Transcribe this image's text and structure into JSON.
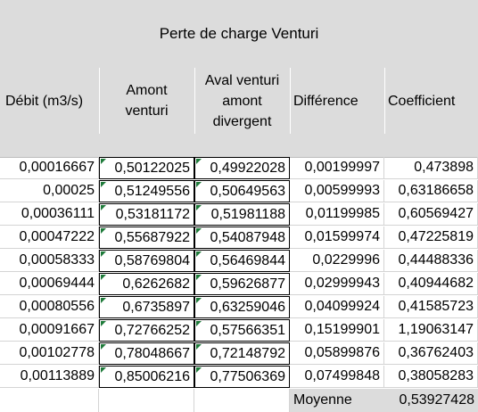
{
  "sheet": {
    "title": "Perte de charge Venturi",
    "headers": {
      "debit": "Débit (m3/s)",
      "amont_l1": "Amont",
      "amont_l2": "venturi",
      "aval_l1": "Aval venturi",
      "aval_l2": "amont",
      "aval_l3": "divergent",
      "difference": "Différence",
      "coefficient": "Coefficient"
    },
    "rows": [
      {
        "debit": "0,00016667",
        "amont": "0,50122025",
        "aval": "0,49922028",
        "difference": "0,00199997",
        "coefficient": "0,473898"
      },
      {
        "debit": "0,00025",
        "amont": "0,51249556",
        "aval": "0,50649563",
        "difference": "0,00599993",
        "coefficient": "0,63186658"
      },
      {
        "debit": "0,00036111",
        "amont": "0,53181172",
        "aval": "0,51981188",
        "difference": "0,01199985",
        "coefficient": "0,60569427"
      },
      {
        "debit": "0,00047222",
        "amont": "0,55687922",
        "aval": "0,54087948",
        "difference": "0,01599974",
        "coefficient": "0,47225819"
      },
      {
        "debit": "0,00058333",
        "amont": "0,58769804",
        "aval": "0,56469844",
        "difference": "0,0229996",
        "coefficient": "0,44488336"
      },
      {
        "debit": "0,00069444",
        "amont": "0,6262682",
        "aval": "0,59626877",
        "difference": "0,02999943",
        "coefficient": "0,40944682"
      },
      {
        "debit": "0,00080556",
        "amont": "0,6735897",
        "aval": "0,63259046",
        "difference": "0,04099924",
        "coefficient": "0,41585723"
      },
      {
        "debit": "0,00091667",
        "amont": "0,72766252",
        "aval": "0,57566351",
        "difference": "0,15199901",
        "coefficient": "1,19063147"
      },
      {
        "debit": "0,00102778",
        "amont": "0,78048667",
        "aval": "0,72148792",
        "difference": "0,05899876",
        "coefficient": "0,36762403"
      },
      {
        "debit": "0,00113889",
        "amont": "0,85006216",
        "aval": "0,77506369",
        "difference": "0,07499848",
        "coefficient": "0,38058283"
      }
    ],
    "footer": {
      "label": "Moyenne",
      "value": "0,53927428"
    }
  }
}
